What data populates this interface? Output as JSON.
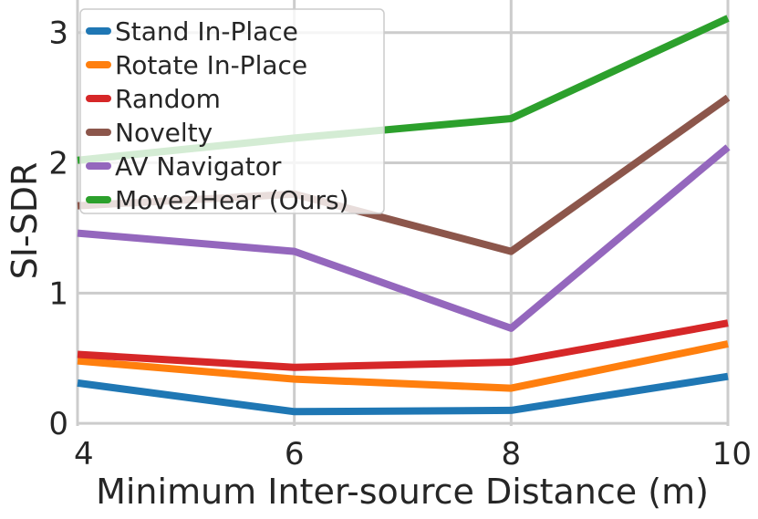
{
  "chart_data": {
    "type": "line",
    "title": "",
    "xlabel": "Minimum Inter-source Distance (m)",
    "ylabel": "SI-SDR",
    "x": [
      4,
      6,
      8,
      10
    ],
    "xticks": [
      4,
      6,
      8,
      10
    ],
    "yticks": [
      0,
      1,
      2,
      3
    ],
    "xlim": [
      4,
      10
    ],
    "ylim": [
      -0.02,
      3.25
    ],
    "grid": true,
    "legend_position": "top-left",
    "series": [
      {
        "name": "Stand In-Place",
        "color": "#1f77b4",
        "values": [
          0.31,
          0.09,
          0.1,
          0.36
        ]
      },
      {
        "name": "Rotate In-Place",
        "color": "#ff7f0e",
        "values": [
          0.48,
          0.34,
          0.27,
          0.61
        ]
      },
      {
        "name": "Random",
        "color": "#d62728",
        "values": [
          0.53,
          0.43,
          0.47,
          0.77
        ]
      },
      {
        "name": "Novelty",
        "color": "#8c564b",
        "values": [
          1.67,
          1.76,
          1.32,
          2.5
        ]
      },
      {
        "name": "AV Navigator",
        "color": "#9467bd",
        "values": [
          1.46,
          1.32,
          0.73,
          2.12
        ]
      },
      {
        "name": "Move2Hear (Ours)",
        "color": "#2ca02c",
        "values": [
          2.02,
          2.19,
          2.34,
          3.11
        ]
      }
    ]
  }
}
